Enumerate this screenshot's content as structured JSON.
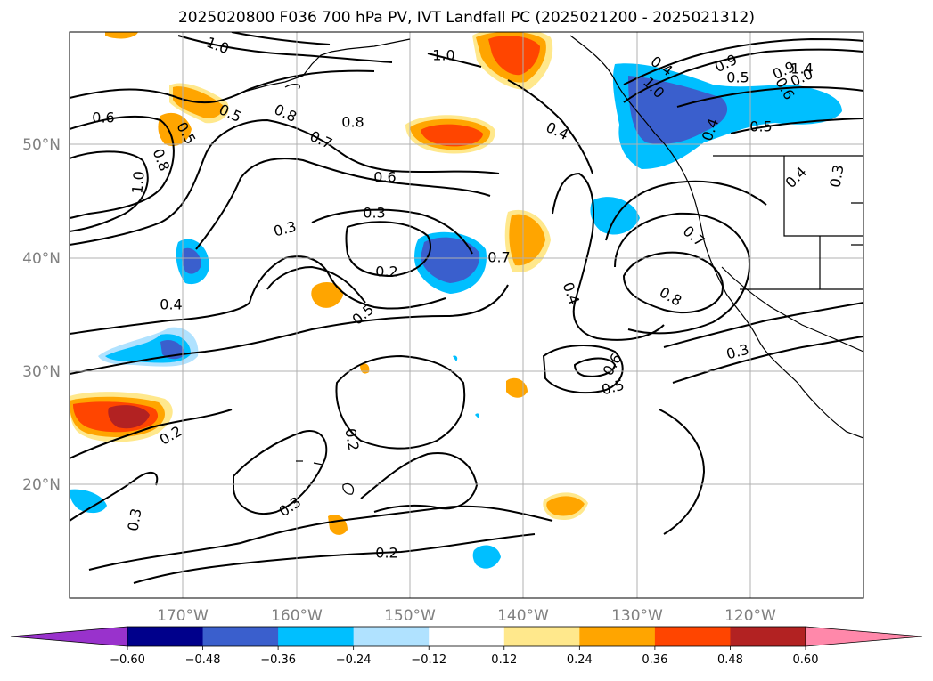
{
  "title": "2025020800 F036 700 hPa PV, IVT Landfall PC (2025021200 - 2025021312)",
  "lat_labels": [
    "50°N",
    "40°N",
    "30°N",
    "20°N"
  ],
  "lon_labels": [
    "170°W",
    "160°W",
    "150°W",
    "140°W",
    "130°W",
    "120°W"
  ],
  "colorbar": {
    "ticks": [
      "−0.60",
      "−0.48",
      "−0.36",
      "−0.24",
      "−0.12",
      "0.12",
      "0.24",
      "0.36",
      "0.48",
      "0.60"
    ],
    "colors": [
      "#9932cc",
      "#00008b",
      "#3a5fcd",
      "#00bfff",
      "#b0e2ff",
      "#ffffff",
      "#ffe88c",
      "#ffa500",
      "#ff4500",
      "#b22222",
      "#ff88aa"
    ]
  },
  "contour_labels": [
    {
      "text": "1.0"
    },
    {
      "text": "0.5"
    },
    {
      "text": "0.8"
    },
    {
      "text": "0.6"
    },
    {
      "text": "0.5"
    },
    {
      "text": "0.8"
    },
    {
      "text": "1.0"
    },
    {
      "text": "0.8"
    },
    {
      "text": "0.7"
    },
    {
      "text": "1.0"
    },
    {
      "text": "0.4"
    },
    {
      "text": "0.4"
    },
    {
      "text": "0.6"
    },
    {
      "text": "0.3"
    },
    {
      "text": "0.3"
    },
    {
      "text": "0.2"
    },
    {
      "text": "0.7"
    },
    {
      "text": "0.4"
    },
    {
      "text": "0.5"
    },
    {
      "text": "0.4"
    },
    {
      "text": "0.2"
    },
    {
      "text": "0.2"
    },
    {
      "text": "0.3"
    },
    {
      "text": "0.3"
    },
    {
      "text": "0.2"
    },
    {
      "text": "0.6"
    },
    {
      "text": "0.5"
    },
    {
      "text": "0.7"
    },
    {
      "text": "0.8"
    },
    {
      "text": "0.3"
    },
    {
      "text": "0.4"
    },
    {
      "text": "0.3"
    },
    {
      "text": "0.5"
    },
    {
      "text": "0.5"
    },
    {
      "text": "0.6"
    },
    {
      "text": "0.4"
    },
    {
      "text": "1.0"
    },
    {
      "text": "1.4"
    },
    {
      "text": "0.9"
    },
    {
      "text": "0.0"
    },
    {
      "text": "0.9"
    }
  ]
}
